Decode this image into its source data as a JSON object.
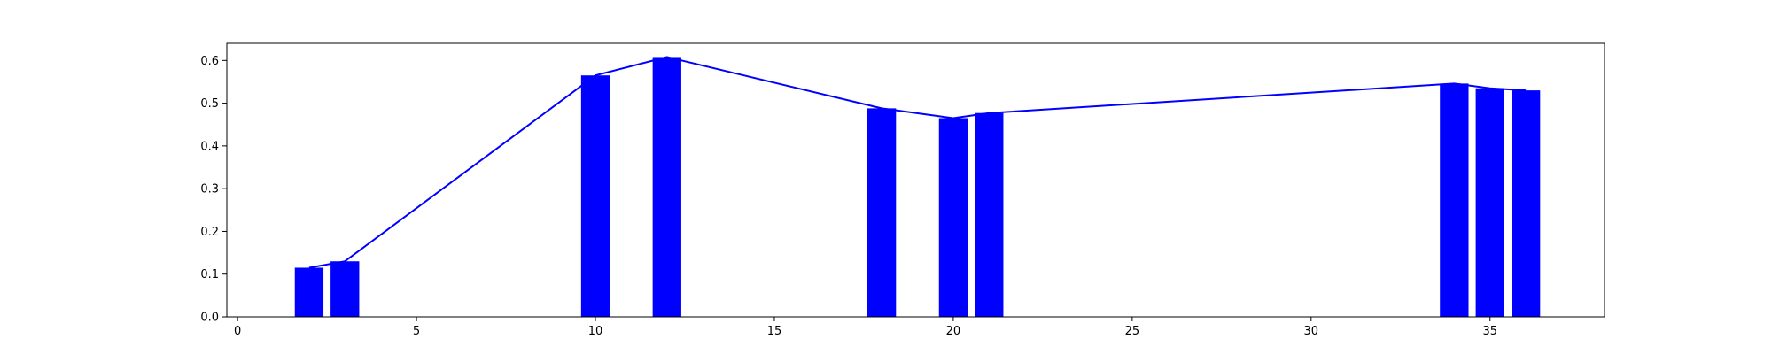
{
  "chart_data": {
    "type": "bar",
    "title": "",
    "xlabel": "",
    "ylabel": "",
    "xlim": [
      -0.3,
      38.2
    ],
    "ylim": [
      0,
      0.64
    ],
    "grid": false,
    "bar_color": "#0000ff",
    "line_color": "#0000ff",
    "bar_width": 0.8,
    "x_ticks": [
      0,
      5,
      10,
      15,
      20,
      25,
      30,
      35
    ],
    "y_ticks": [
      0.0,
      0.1,
      0.2,
      0.3,
      0.4,
      0.5,
      0.6
    ],
    "x_tick_labels": [
      "0",
      "5",
      "10",
      "15",
      "20",
      "25",
      "30",
      "35"
    ],
    "y_tick_labels": [
      "0.0",
      "0.1",
      "0.2",
      "0.3",
      "0.4",
      "0.5",
      "0.6"
    ],
    "series": [
      {
        "x": [
          2,
          3,
          10,
          12,
          18,
          20,
          21,
          34,
          35,
          36
        ],
        "values": [
          0.115,
          0.13,
          0.565,
          0.608,
          0.488,
          0.465,
          0.477,
          0.546,
          0.535,
          0.53
        ]
      }
    ]
  }
}
